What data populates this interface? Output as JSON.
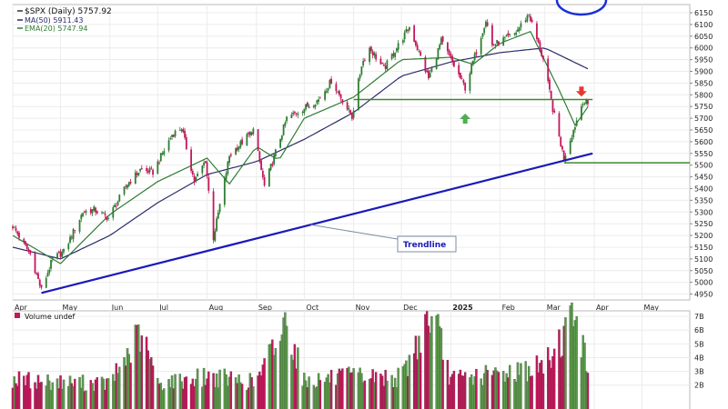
{
  "chart_data": [
    {
      "type": "candlestick",
      "title": "$SPX (Daily) 5757.92",
      "legend": [
        {
          "label": "MA(50) 5911.43",
          "color": "#2b2b6b"
        },
        {
          "label": "EMA(20) 5747.94",
          "color": "#2e7d32"
        }
      ],
      "x_tick_labels": [
        "Apr",
        "May",
        "Jun",
        "Jul",
        "Aug",
        "Sep",
        "Oct",
        "Nov",
        "Dec",
        "2025",
        "Feb",
        "Mar",
        "Apr",
        "May"
      ],
      "y_tick_labels": [
        "6150",
        "6100",
        "6050",
        "6000",
        "5950",
        "5900",
        "5850",
        "5800",
        "5750",
        "5700",
        "5650",
        "5600",
        "5550",
        "5500",
        "5450",
        "5400",
        "5350",
        "5300",
        "5250",
        "5200",
        "5150",
        "5100",
        "5050",
        "5000",
        "4950"
      ],
      "ylim": [
        4925,
        6185
      ],
      "annotation": "Trendline",
      "horizontal_levels": [
        {
          "value": 5780,
          "color": "#3a8a2a"
        },
        {
          "value": 5510,
          "color": "#3a8a2a"
        }
      ],
      "trendline": {
        "from": [
          "2024-04-19",
          4955
        ],
        "to": [
          "2025-03-31",
          5550
        ],
        "color": "#1a1ab8"
      },
      "close_anchors": [
        [
          "2024-04-01",
          5240
        ],
        [
          "2024-04-12",
          5120
        ],
        [
          "2024-04-19",
          4967
        ],
        [
          "2024-04-26",
          5100
        ],
        [
          "2024-05-03",
          5130
        ],
        [
          "2024-05-15",
          5300
        ],
        [
          "2024-05-22",
          5310
        ],
        [
          "2024-05-31",
          5275
        ],
        [
          "2024-06-12",
          5420
        ],
        [
          "2024-06-20",
          5480
        ],
        [
          "2024-06-28",
          5470
        ],
        [
          "2024-07-10",
          5630
        ],
        [
          "2024-07-16",
          5660
        ],
        [
          "2024-07-24",
          5430
        ],
        [
          "2024-07-31",
          5520
        ],
        [
          "2024-08-05",
          5190
        ],
        [
          "2024-08-15",
          5540
        ],
        [
          "2024-08-30",
          5650
        ],
        [
          "2024-09-06",
          5410
        ],
        [
          "2024-09-20",
          5700
        ],
        [
          "2024-10-10",
          5780
        ],
        [
          "2024-10-18",
          5860
        ],
        [
          "2024-10-31",
          5705
        ],
        [
          "2024-11-06",
          5930
        ],
        [
          "2024-11-11",
          6000
        ],
        [
          "2024-11-20",
          5910
        ],
        [
          "2024-12-06",
          6090
        ],
        [
          "2024-12-18",
          5870
        ],
        [
          "2024-12-26",
          6030
        ],
        [
          "2025-01-10",
          5830
        ],
        [
          "2025-01-23",
          6120
        ],
        [
          "2025-01-27",
          6010
        ],
        [
          "2025-02-10",
          6060
        ],
        [
          "2025-02-19",
          6145
        ],
        [
          "2025-02-28",
          5950
        ],
        [
          "2025-03-06",
          5740
        ],
        [
          "2025-03-13",
          5530
        ],
        [
          "2025-03-20",
          5670
        ],
        [
          "2025-03-25",
          5775
        ],
        [
          "2025-03-28",
          5758
        ]
      ],
      "ma50_anchors": [
        [
          "2024-04-01",
          5150
        ],
        [
          "2024-05-01",
          5100
        ],
        [
          "2024-06-01",
          5200
        ],
        [
          "2024-07-01",
          5340
        ],
        [
          "2024-08-01",
          5460
        ],
        [
          "2024-09-01",
          5515
        ],
        [
          "2024-10-01",
          5610
        ],
        [
          "2024-11-01",
          5725
        ],
        [
          "2024-12-01",
          5880
        ],
        [
          "2025-01-01",
          5940
        ],
        [
          "2025-02-01",
          5980
        ],
        [
          "2025-03-01",
          6000
        ],
        [
          "2025-03-28",
          5911
        ]
      ],
      "ema20_anchors": [
        [
          "2024-04-01",
          5200
        ],
        [
          "2024-05-01",
          5080
        ],
        [
          "2024-06-01",
          5290
        ],
        [
          "2024-07-01",
          5430
        ],
        [
          "2024-08-01",
          5530
        ],
        [
          "2024-08-15",
          5420
        ],
        [
          "2024-09-01",
          5580
        ],
        [
          "2024-09-15",
          5520
        ],
        [
          "2024-10-01",
          5700
        ],
        [
          "2024-11-01",
          5790
        ],
        [
          "2024-12-01",
          5950
        ],
        [
          "2025-01-01",
          5960
        ],
        [
          "2025-01-15",
          5930
        ],
        [
          "2025-02-01",
          6020
        ],
        [
          "2025-02-20",
          6070
        ],
        [
          "2025-03-10",
          5820
        ],
        [
          "2025-03-20",
          5670
        ],
        [
          "2025-03-28",
          5748
        ]
      ],
      "markers": [
        {
          "type": "up-arrow",
          "date": "2025-01-10",
          "value": 5720,
          "color": "#4caf50"
        },
        {
          "type": "down-arrow",
          "date": "2025-03-24",
          "value": 5835,
          "color": "#e53935"
        }
      ],
      "up_color": "#2e7d32",
      "down_color": "#c2185b"
    },
    {
      "type": "bar",
      "title": "Volume undef",
      "y_tick_labels": [
        "7B",
        "6B",
        "5B",
        "4B",
        "3B",
        "2B"
      ],
      "ylim": [
        0,
        7.4
      ],
      "volume_anchors": [
        [
          "2024-04-01",
          2.3
        ],
        [
          "2024-05-01",
          2.1
        ],
        [
          "2024-06-01",
          2.0
        ],
        [
          "2024-06-21",
          5.6
        ],
        [
          "2024-07-01",
          2.0
        ],
        [
          "2024-08-01",
          2.5
        ],
        [
          "2024-09-01",
          2.1
        ],
        [
          "2024-09-20",
          6.3
        ],
        [
          "2024-10-01",
          2.2
        ],
        [
          "2024-11-01",
          2.5
        ],
        [
          "2024-12-01",
          2.4
        ],
        [
          "2024-12-20",
          7.0
        ],
        [
          "2025-01-01",
          2.3
        ],
        [
          "2025-02-01",
          2.7
        ],
        [
          "2025-03-01",
          3.2
        ],
        [
          "2025-03-21",
          7.0
        ],
        [
          "2025-03-28",
          2.6
        ]
      ]
    }
  ]
}
